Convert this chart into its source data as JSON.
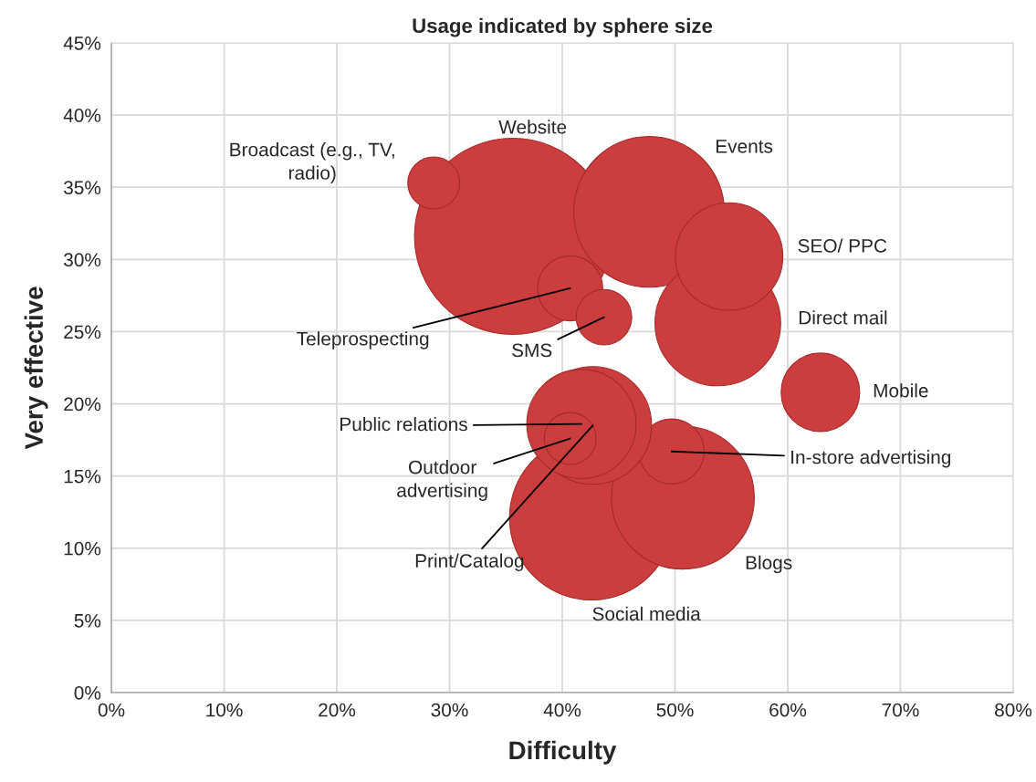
{
  "chart_data": {
    "type": "bubble",
    "title": "Usage indicated by sphere size",
    "xlabel": "Difficulty",
    "ylabel": "Very effective",
    "x": [
      42.6,
      50.7,
      49.7,
      42.7,
      41.7,
      40.7,
      35.6,
      28.6,
      47.7,
      40.7,
      43.7,
      53.8,
      54.8,
      62.9
    ],
    "values": [
      12.1,
      13.5,
      16.7,
      18.5,
      18.6,
      17.6,
      31.6,
      35.3,
      33.3,
      28.0,
      26.0,
      25.6,
      30.2,
      20.8
    ],
    "sizes": [
      0.7,
      0.53,
      0.11,
      0.36,
      0.31,
      0.07,
      1,
      0.07,
      0.59,
      0.11,
      0.08,
      0.41,
      0.3,
      0.16
    ],
    "color": "#cc3d3d",
    "annotations": [
      "Social media",
      "Blogs",
      {
        "text": "In-store advertising",
        "x": 49.7,
        "y": 16.7
      },
      {
        "text": "Print/Catalog",
        "x": 42.7,
        "y": 18.5
      },
      {
        "text": "Public relations",
        "x": 41.7,
        "y": 18.6
      },
      {
        "text": "Outdoor\nadvertising",
        "x": 40.7,
        "y": 17.6
      },
      "Website",
      "Broadcast (e.g., TV,\nradio)",
      "Events",
      {
        "text": "Teleprospecting",
        "x": 40.7,
        "y": 28.0
      },
      {
        "text": "SMS",
        "x": 43.7,
        "y": 26.0
      },
      "Direct mail",
      "SEO/ PPC",
      "Mobile"
    ],
    "xlim": [
      0,
      80
    ],
    "ylim": [
      0,
      45
    ],
    "xticks": [
      {
        "value": 0,
        "label": "0%"
      },
      {
        "value": 10,
        "label": "10%"
      },
      {
        "value": 20,
        "label": "20%"
      },
      {
        "value": 30,
        "label": "30%"
      },
      {
        "value": 40,
        "label": "40%"
      },
      {
        "value": 50,
        "label": "50%"
      },
      {
        "value": 60,
        "label": "60%"
      },
      {
        "value": 70,
        "label": "70%"
      },
      {
        "value": 80,
        "label": "80%"
      }
    ],
    "yticks": [
      {
        "value": 0,
        "label": "0%"
      },
      {
        "value": 5,
        "label": "5%"
      },
      {
        "value": 10,
        "label": "10%"
      },
      {
        "value": 15,
        "label": "15%"
      },
      {
        "value": 20,
        "label": "20%"
      },
      {
        "value": 25,
        "label": "25%"
      },
      {
        "value": 30,
        "label": "30%"
      },
      {
        "value": 35,
        "label": "35%"
      },
      {
        "value": 40,
        "label": "40%"
      },
      {
        "value": 45,
        "label": "45%"
      }
    ],
    "grid": true,
    "legend": false
  }
}
